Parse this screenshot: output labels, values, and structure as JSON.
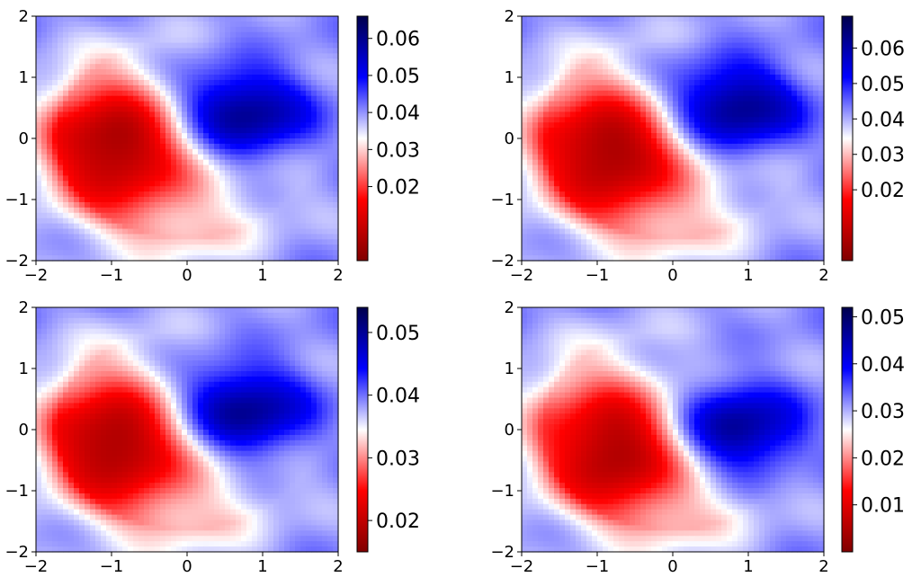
{
  "chart_data": [
    {
      "type": "heatmap",
      "title": "",
      "xlabel": "",
      "ylabel": "",
      "xlim": [
        -2,
        2
      ],
      "ylim": [
        -2,
        2
      ],
      "x_ticks": [
        "−2",
        "−1",
        "0",
        "1",
        "2"
      ],
      "y_ticks": [
        "2",
        "1",
        "0",
        "−1",
        "−2"
      ],
      "colormap": "seismic_r",
      "colorbar": {
        "min": 0.0,
        "max": 0.066,
        "ticks": [
          0.02,
          0.03,
          0.04,
          0.05,
          0.06
        ],
        "tick_labels": [
          "0.02",
          "0.03",
          "0.04",
          "0.05",
          "0.06"
        ]
      },
      "field": {
        "blob_center": [
          0.7,
          0.4
        ],
        "red_lobe_center": [
          -0.9,
          -0.1
        ],
        "white_contour_level": 0.033
      }
    },
    {
      "type": "heatmap",
      "title": "",
      "xlabel": "",
      "ylabel": "",
      "xlim": [
        -2,
        2
      ],
      "ylim": [
        -2,
        2
      ],
      "x_ticks": [
        "−2",
        "−1",
        "0",
        "1",
        "2"
      ],
      "y_ticks": [
        "2",
        "1",
        "0",
        "−1",
        "−2"
      ],
      "colormap": "seismic_r",
      "colorbar": {
        "min": 0.0,
        "max": 0.069,
        "ticks": [
          0.02,
          0.03,
          0.04,
          0.05,
          0.06
        ],
        "tick_labels": [
          "0.02",
          "0.03",
          "0.04",
          "0.05",
          "0.06"
        ]
      },
      "field": {
        "blob_center": [
          0.8,
          0.5
        ],
        "red_lobe_center": [
          -0.8,
          -0.2
        ],
        "white_contour_level": 0.035
      }
    },
    {
      "type": "heatmap",
      "title": "",
      "xlabel": "",
      "ylabel": "",
      "xlim": [
        -2,
        2
      ],
      "ylim": [
        -2,
        2
      ],
      "x_ticks": [
        "−2",
        "−1",
        "0",
        "1",
        "2"
      ],
      "y_ticks": [
        "2",
        "1",
        "0",
        "−1",
        "−2"
      ],
      "colormap": "seismic_r",
      "colorbar": {
        "min": 0.015,
        "max": 0.054,
        "ticks": [
          0.02,
          0.03,
          0.04,
          0.05
        ],
        "tick_labels": [
          "0.02",
          "0.03",
          "0.04",
          "0.05"
        ]
      },
      "field": {
        "blob_center": [
          0.7,
          0.3
        ],
        "red_lobe_center": [
          -0.9,
          -0.2
        ],
        "white_contour_level": 0.035
      }
    },
    {
      "type": "heatmap",
      "title": "",
      "xlabel": "",
      "ylabel": "",
      "xlim": [
        -2,
        2
      ],
      "ylim": [
        -2,
        2
      ],
      "x_ticks": [
        "−2",
        "−1",
        "0",
        "1",
        "2"
      ],
      "y_ticks": [
        "2",
        "1",
        "0",
        "−1",
        "−2"
      ],
      "colormap": "seismic_r",
      "colorbar": {
        "min": 0.0,
        "max": 0.052,
        "ticks": [
          0.01,
          0.02,
          0.03,
          0.04,
          0.05
        ],
        "tick_labels": [
          "0.01",
          "0.02",
          "0.03",
          "0.04",
          "0.05"
        ]
      },
      "field": {
        "blob_center": [
          0.8,
          0.0
        ],
        "red_lobe_center": [
          -0.7,
          -0.3
        ],
        "white_contour_level": 0.025
      }
    }
  ]
}
